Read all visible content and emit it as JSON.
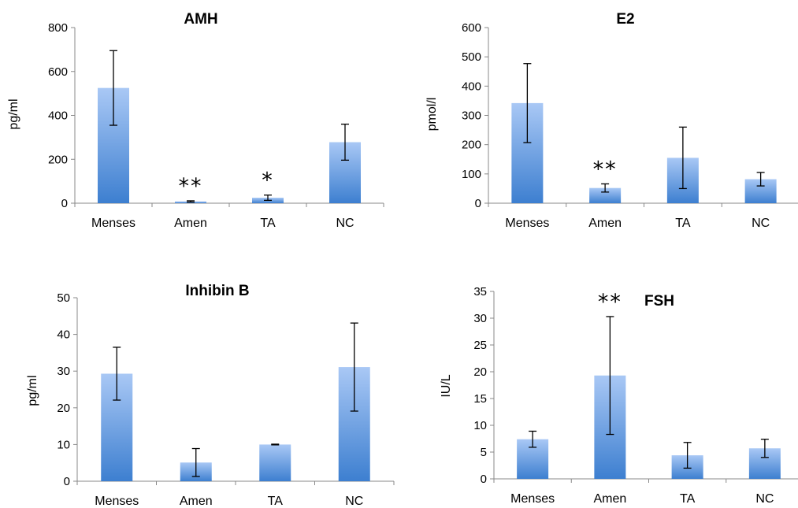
{
  "bar_gradient": {
    "top": "#a9c8f5",
    "bottom": "#3d7fd0"
  },
  "axis_color": "#888888",
  "error_bar_color": "#000000",
  "chart_data": [
    {
      "type": "bar",
      "title": "AMH",
      "ylabel": "pg/ml",
      "xlabel": "",
      "categories": [
        "Menses",
        "Amen",
        "TA",
        "NC"
      ],
      "values": [
        525,
        8,
        25,
        278
      ],
      "errors": [
        170,
        3,
        12,
        82
      ],
      "annotations": [
        "",
        "**",
        "*",
        ""
      ],
      "ylim": [
        0,
        800
      ],
      "yticks": [
        0,
        200,
        400,
        600,
        800
      ],
      "grid": false
    },
    {
      "type": "bar",
      "title": "E2",
      "ylabel": "pmol/l",
      "xlabel": "",
      "categories": [
        "Menses",
        "Amen",
        "TA",
        "NC"
      ],
      "values": [
        342,
        52,
        155,
        82
      ],
      "errors": [
        135,
        14,
        105,
        23
      ],
      "annotations": [
        "",
        "**",
        "",
        ""
      ],
      "ylim": [
        0,
        600
      ],
      "yticks": [
        0,
        100,
        200,
        300,
        400,
        500,
        600
      ],
      "grid": false
    },
    {
      "type": "bar",
      "title": "Inhibin B",
      "ylabel": "pg/ml",
      "xlabel": "",
      "categories": [
        "Menses",
        "Amen",
        "TA",
        "NC"
      ],
      "values": [
        29.3,
        5.1,
        10.0,
        31.1
      ],
      "errors": [
        7.2,
        3.8,
        0.1,
        12.0
      ],
      "annotations": [
        "",
        "",
        "",
        ""
      ],
      "ylim": [
        0,
        50
      ],
      "yticks": [
        0,
        10,
        20,
        30,
        40,
        50
      ],
      "grid": false
    },
    {
      "type": "bar",
      "title": "FSH",
      "ylabel": "IU/L",
      "xlabel": "",
      "categories": [
        "Menses",
        "Amen",
        "TA",
        "NC"
      ],
      "values": [
        7.4,
        19.3,
        4.4,
        5.7
      ],
      "errors": [
        1.5,
        11.0,
        2.4,
        1.7
      ],
      "annotations": [
        "",
        "**",
        "",
        ""
      ],
      "ylim": [
        0,
        35
      ],
      "yticks": [
        0,
        5,
        10,
        15,
        20,
        25,
        30,
        35
      ],
      "grid": false
    }
  ]
}
